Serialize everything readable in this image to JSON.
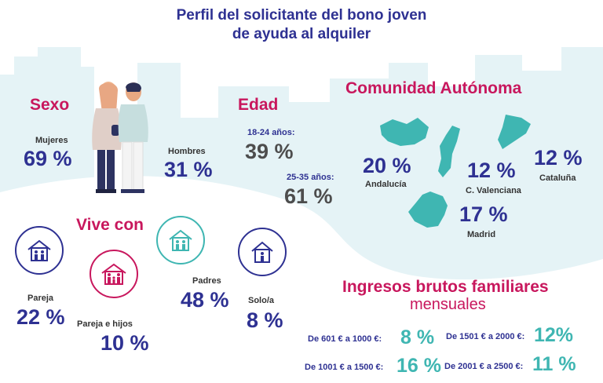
{
  "title_line1": "Perfil del solicitante del bono joven",
  "title_line2": "de ayuda al alquiler",
  "colors": {
    "navy": "#2e3192",
    "magenta": "#c8175d",
    "teal": "#3fb6b2",
    "gray": "#4d4d4d",
    "skyline": "#e5f3f6"
  },
  "sexo": {
    "title": "Sexo",
    "mujeres_label": "Mujeres",
    "mujeres_value": "69 %",
    "hombres_label": "Hombres",
    "hombres_value": "31 %"
  },
  "edad": {
    "title": "Edad",
    "g1_label": "18-24 años:",
    "g1_value": "39 %",
    "g2_label": "25-35 años:",
    "g2_value": "61 %"
  },
  "ccaa": {
    "title": "Comunidad Autónoma",
    "andalucia_value": "20 %",
    "andalucia_label": "Andalucía",
    "valenciana_value": "12 %",
    "valenciana_label": "C. Valenciana",
    "cataluna_value": "12 %",
    "cataluna_label": "Cataluña",
    "madrid_value": "17 %",
    "madrid_label": "Madrid"
  },
  "vive": {
    "title": "Vive con",
    "pareja_label": "Pareja",
    "pareja_value": "22 %",
    "hijos_label": "Pareja e hijos",
    "hijos_value": "10 %",
    "padres_label": "Padres",
    "padres_value": "48 %",
    "solo_label": "Solo/a",
    "solo_value": "8 %"
  },
  "ingresos": {
    "title1": "Ingresos brutos familiares",
    "title2": "mensuales",
    "r1_label": "De 601 € a 1000 €:",
    "r1_value": "8 %",
    "r2_label": "De 1501 € a 2000 €:",
    "r2_value": "12%",
    "r3_label": "De 1001 € a 1500 €:",
    "r3_value": "16 %",
    "r4_label": "De 2001 € a 2500 €:",
    "r4_value": "11 %"
  },
  "icons": [
    "couple-illustration",
    "spain-region-map",
    "house-couple-icon",
    "house-family-icon",
    "house-parents-icon",
    "house-single-icon"
  ]
}
